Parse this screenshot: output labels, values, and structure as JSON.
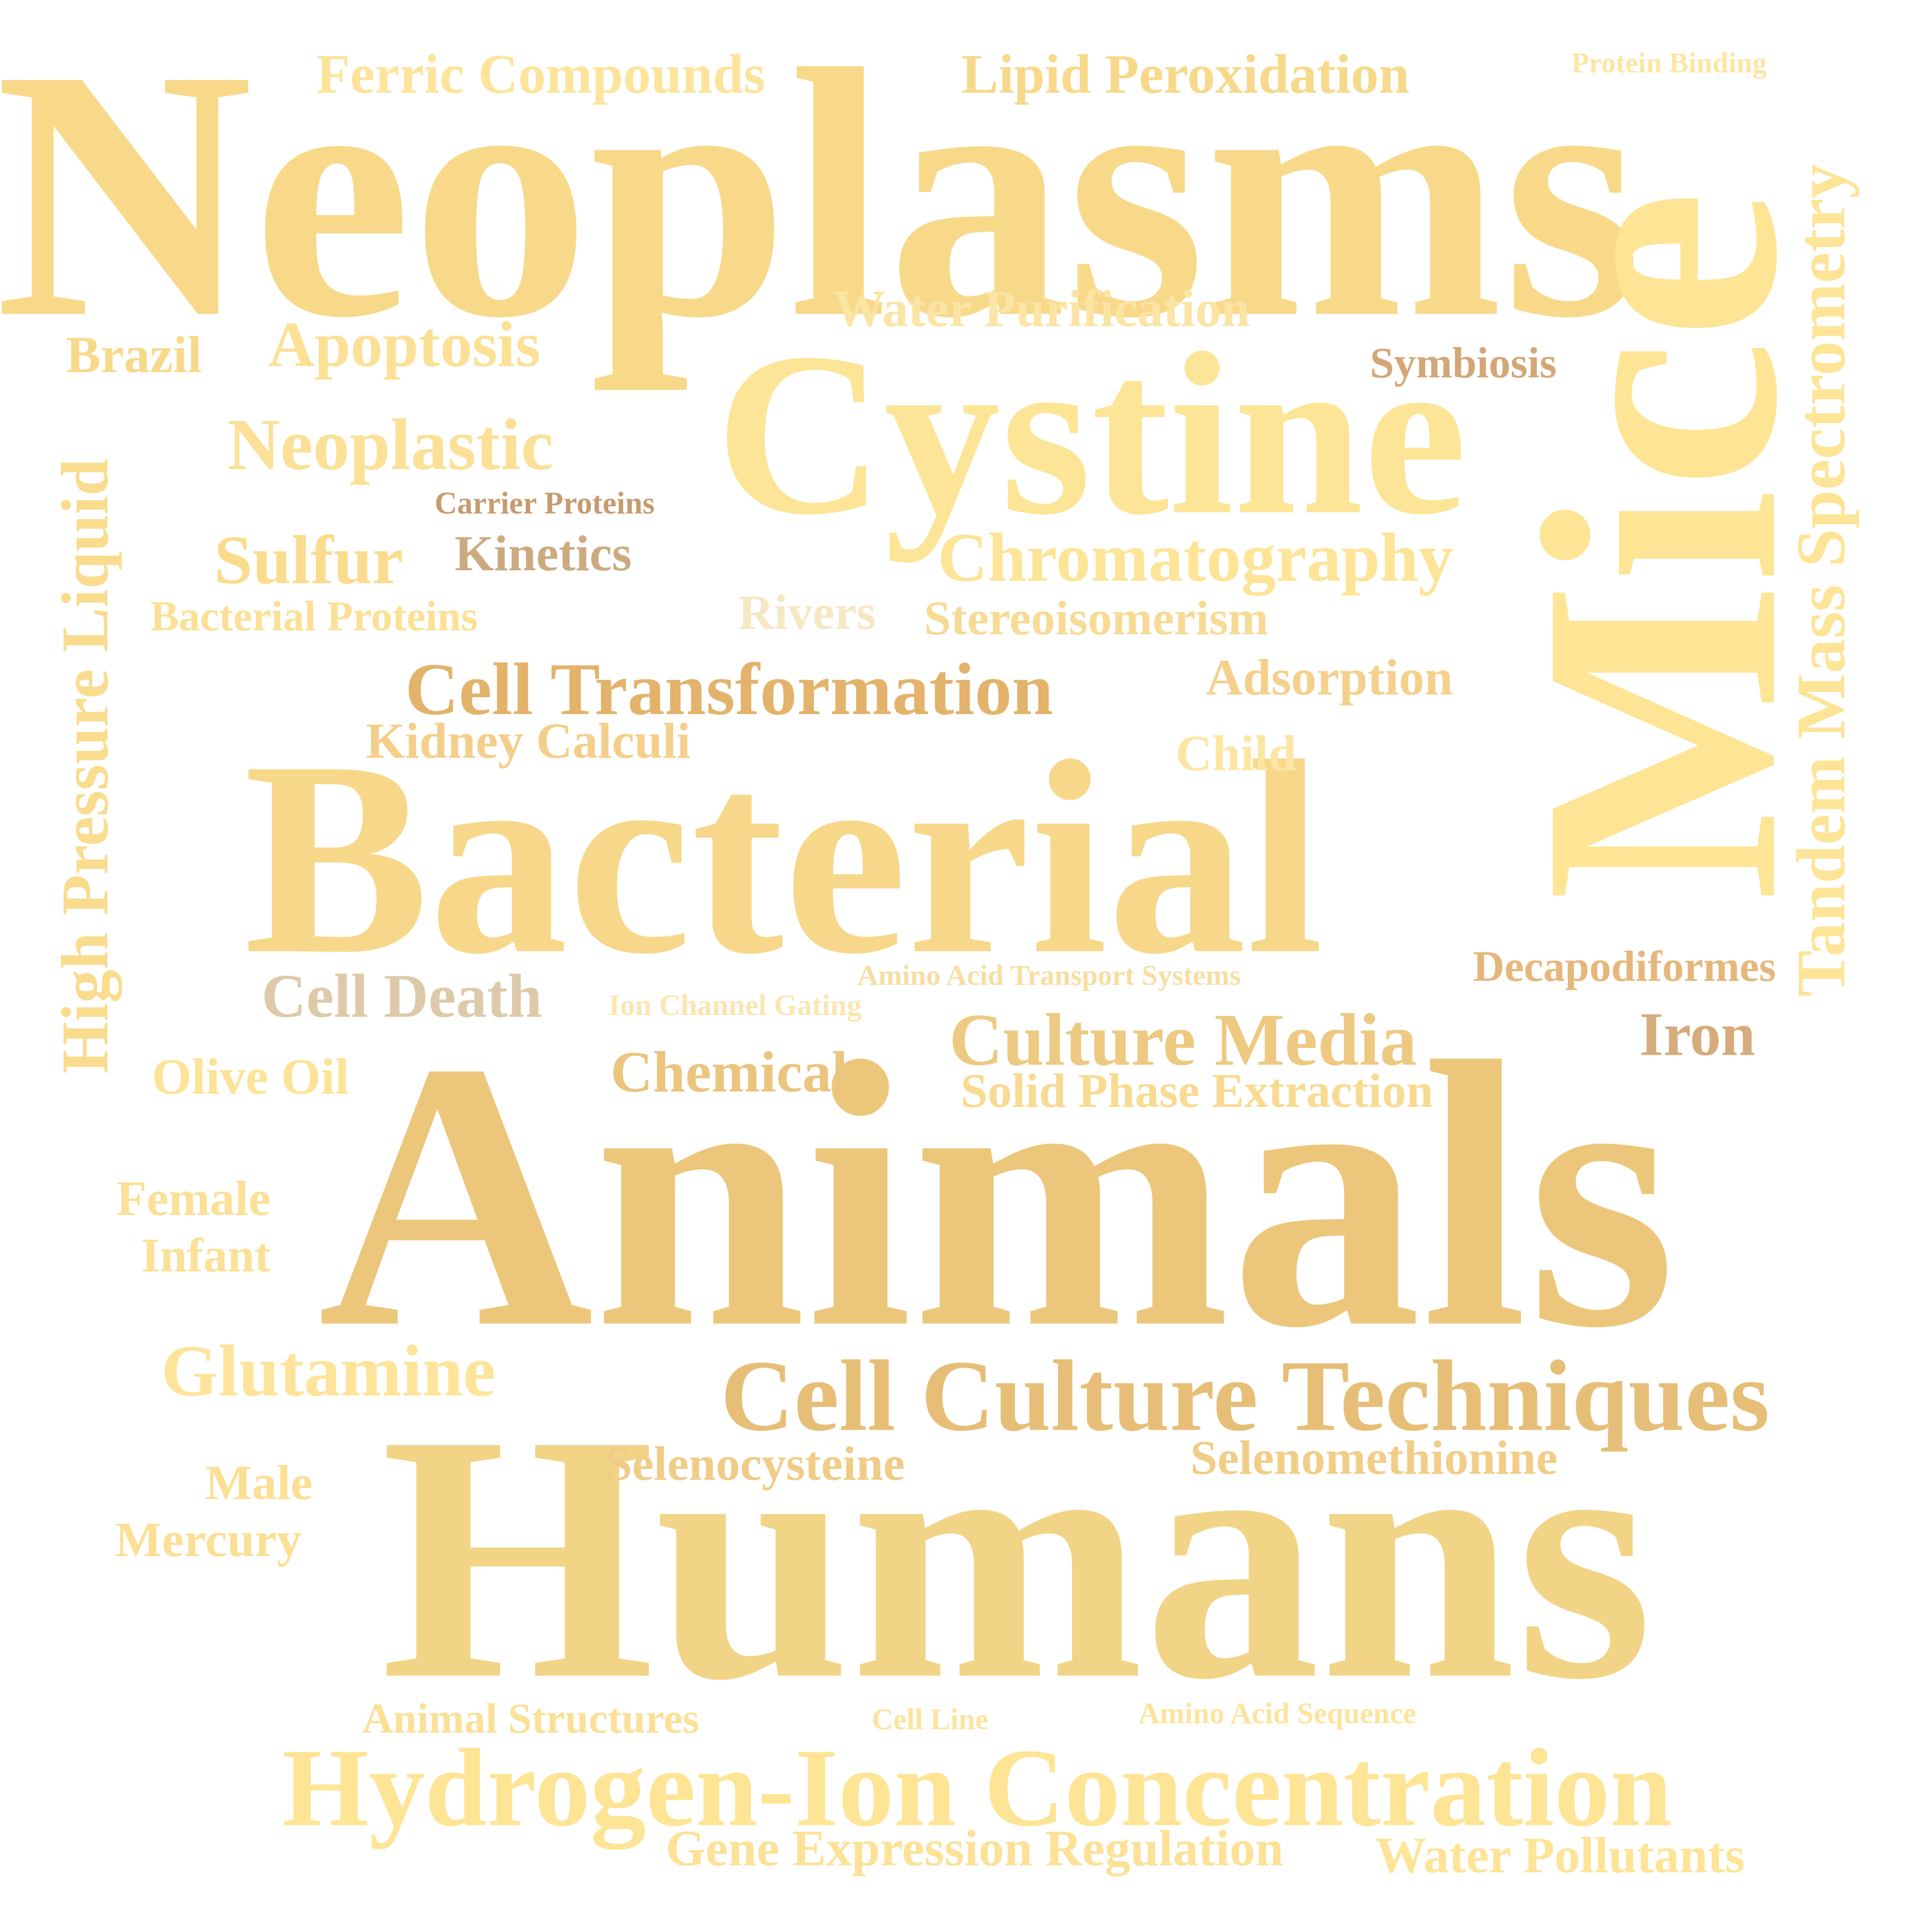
{
  "words": [
    {
      "id": "neoplasms",
      "text": "Neoplasms",
      "color": "#f8d98a"
    },
    {
      "id": "mice",
      "text": "Mice",
      "color": "#fee495"
    },
    {
      "id": "cystine",
      "text": "Cystine",
      "color": "#fce596"
    },
    {
      "id": "bacterial",
      "text": "Bacterial",
      "color": "#f7d88a"
    },
    {
      "id": "animals",
      "text": "Animals",
      "color": "#ecc77b"
    },
    {
      "id": "humans",
      "text": "Humans",
      "color": "#f2d486"
    },
    {
      "id": "hydrogen-ion-concentration",
      "text": "Hydrogen-Ion Concentration",
      "color": "#fee495"
    },
    {
      "id": "cell-culture-techniques",
      "text": "Cell Culture Techniques",
      "color": "#e7be77"
    },
    {
      "id": "tandem-mass-spectrometry",
      "text": "Tandem Mass Spectrometry",
      "color": "#fde496"
    },
    {
      "id": "high-pressure-liquid",
      "text": "High Pressure Liquid",
      "color": "#f9dc8d"
    },
    {
      "id": "cell-transformation",
      "text": "Cell Transformation",
      "color": "#e3b36c"
    },
    {
      "id": "chromatography",
      "text": "Chromatography",
      "color": "#fde497"
    },
    {
      "id": "ferric-compounds",
      "text": "Ferric Compounds",
      "color": "#fde49a"
    },
    {
      "id": "lipid-peroxidation",
      "text": "Lipid Peroxidation",
      "color": "#f7d98b"
    },
    {
      "id": "protein-binding",
      "text": "Protein Binding",
      "color": "#fde6a4"
    },
    {
      "id": "water-purification",
      "text": "Water Purification",
      "color": "#fbe5a5"
    },
    {
      "id": "brazil",
      "text": "Brazil",
      "color": "#f8d98b"
    },
    {
      "id": "apoptosis",
      "text": "Apoptosis",
      "color": "#fbe096"
    },
    {
      "id": "symbiosis",
      "text": "Symbiosis",
      "color": "#d3a776"
    },
    {
      "id": "neoplastic",
      "text": "Neoplastic",
      "color": "#fbe097"
    },
    {
      "id": "carrier-proteins",
      "text": "Carrier Proteins",
      "color": "#c49c6e"
    },
    {
      "id": "sulfur",
      "text": "Sulfur",
      "color": "#fbdc8e"
    },
    {
      "id": "kinetics",
      "text": "Kinetics",
      "color": "#ccaa80"
    },
    {
      "id": "bacterial-proteins",
      "text": "Bacterial Proteins",
      "color": "#fce095"
    },
    {
      "id": "rivers",
      "text": "Rivers",
      "color": "#f6e8c4"
    },
    {
      "id": "stereoisomerism",
      "text": "Stereoisomerism",
      "color": "#f7db95"
    },
    {
      "id": "adsorption",
      "text": "Adsorption",
      "color": "#f4d08c"
    },
    {
      "id": "kidney-calculi",
      "text": "Kidney Calculi",
      "color": "#f4cf8b"
    },
    {
      "id": "child",
      "text": "Child",
      "color": "#fde6a4"
    },
    {
      "id": "cell-death",
      "text": "Cell Death",
      "color": "#dccaaa"
    },
    {
      "id": "amino-acid-transport-systems",
      "text": "Amino Acid Transport Systems",
      "color": "#f8dea4"
    },
    {
      "id": "ion-channel-gating",
      "text": "Ion Channel Gating",
      "color": "#fbe6b2"
    },
    {
      "id": "decapodiformes",
      "text": "Decapodiformes",
      "color": "#e5b77a"
    },
    {
      "id": "culture-media",
      "text": "Culture Media",
      "color": "#edc981"
    },
    {
      "id": "iron",
      "text": "Iron",
      "color": "#d6ab7d"
    },
    {
      "id": "olive-oil",
      "text": "Olive Oil",
      "color": "#fde396"
    },
    {
      "id": "chemical",
      "text": "Chemical",
      "color": "#eac57e"
    },
    {
      "id": "solid-phase-extraction",
      "text": "Solid Phase Extraction",
      "color": "#f8da91"
    },
    {
      "id": "female",
      "text": "Female",
      "color": "#fbe097"
    },
    {
      "id": "infant",
      "text": "Infant",
      "color": "#fbe097"
    },
    {
      "id": "glutamine",
      "text": "Glutamine",
      "color": "#fee49a"
    },
    {
      "id": "selenocysteine",
      "text": "Selenocysteine",
      "color": "#f1cc86"
    },
    {
      "id": "selenomethionine",
      "text": "Selenomethionine",
      "color": "#f2cd88"
    },
    {
      "id": "male",
      "text": "Male",
      "color": "#fbdf95"
    },
    {
      "id": "mercury",
      "text": "Mercury",
      "color": "#fbdf95"
    },
    {
      "id": "animal-structures",
      "text": "Animal Structures",
      "color": "#fbe097"
    },
    {
      "id": "cell-line",
      "text": "Cell Line",
      "color": "#fde49d"
    },
    {
      "id": "amino-acid-sequence",
      "text": "Amino Acid Sequence",
      "color": "#fde49d"
    },
    {
      "id": "gene-expression-regulation",
      "text": "Gene Expression Regulation",
      "color": "#fce197"
    },
    {
      "id": "water-pollutants",
      "text": "Water Pollutants",
      "color": "#fde497"
    }
  ]
}
